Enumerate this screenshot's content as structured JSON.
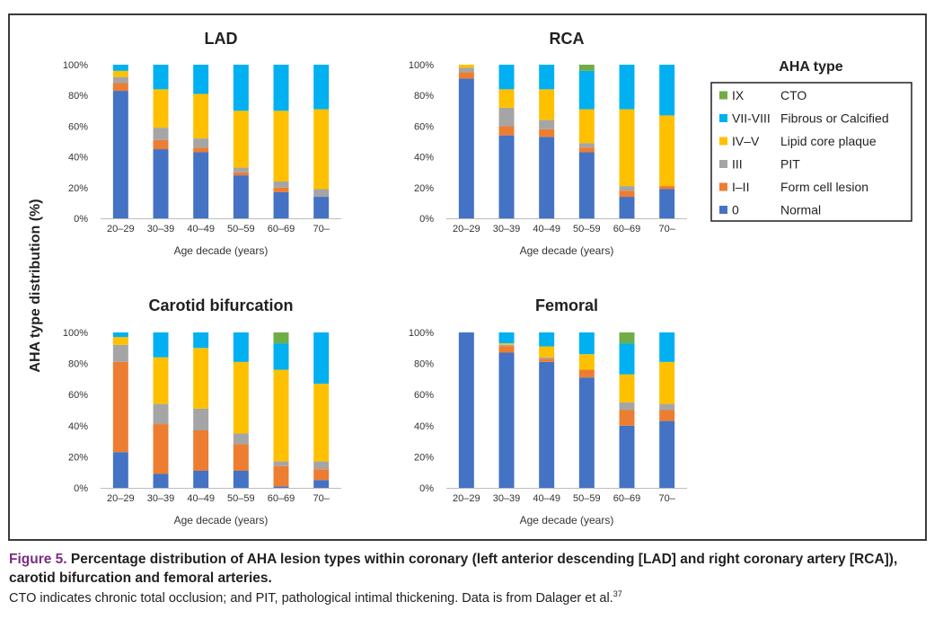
{
  "figure": {
    "label": "Figure 5.",
    "title": "Percentage distribution of AHA lesion types within coronary (left anterior descending [LAD] and right coronary artery [RCA]), carotid bifurcation and femoral arteries.",
    "note": "CTO indicates chronic total occlusion; and PIT, pathological intimal thickening. Data is from Dalager et al.",
    "note_ref": "37",
    "y_axis_label": "AHA type distribution (%)"
  },
  "legend": {
    "title": "AHA type",
    "items": [
      {
        "key": "IX",
        "code": "IX",
        "label": "CTO",
        "color": "#70ad47"
      },
      {
        "key": "VII-VIII",
        "code": "VII-VIII",
        "label": "Fibrous or Calcified",
        "color": "#00b0f0"
      },
      {
        "key": "IV-V",
        "code": "IV–V",
        "label": "Lipid core plaque",
        "color": "#ffc000"
      },
      {
        "key": "III",
        "code": "III",
        "label": "PIT",
        "color": "#a5a5a5"
      },
      {
        "key": "I-II",
        "code": "I–II",
        "label": "Form cell lesion",
        "color": "#ed7d31"
      },
      {
        "key": "0",
        "code": "0",
        "label": "Normal",
        "color": "#4472c4"
      }
    ]
  },
  "chart_data": [
    {
      "type": "bar",
      "stacked": true,
      "title": "LAD",
      "xlabel": "Age decade (years)",
      "ylabel": "AHA type distribution (%)",
      "ylim": [
        0,
        100
      ],
      "yticks": [
        "0%",
        "20%",
        "40%",
        "60%",
        "80%",
        "100%"
      ],
      "categories": [
        "20–29",
        "30–39",
        "40–49",
        "50–59",
        "60–69",
        "70–"
      ],
      "series": [
        {
          "name": "0",
          "values": [
            83,
            45,
            43,
            28,
            17,
            14
          ]
        },
        {
          "name": "I-II",
          "values": [
            5,
            6,
            3,
            2,
            3,
            0
          ]
        },
        {
          "name": "III",
          "values": [
            4,
            8,
            6,
            3,
            4,
            5
          ]
        },
        {
          "name": "IV-V",
          "values": [
            4,
            25,
            29,
            37,
            46,
            52
          ]
        },
        {
          "name": "VII-VIII",
          "values": [
            4,
            16,
            19,
            30,
            30,
            29
          ]
        },
        {
          "name": "IX",
          "values": [
            0,
            0,
            0,
            0,
            0,
            0
          ]
        }
      ]
    },
    {
      "type": "bar",
      "stacked": true,
      "title": "RCA",
      "xlabel": "Age decade (years)",
      "ylabel": "AHA type distribution (%)",
      "ylim": [
        0,
        100
      ],
      "yticks": [
        "0%",
        "20%",
        "40%",
        "60%",
        "80%",
        "100%"
      ],
      "categories": [
        "20–29",
        "30–39",
        "40–49",
        "50–59",
        "60–69",
        "70–"
      ],
      "series": [
        {
          "name": "0",
          "values": [
            91,
            54,
            53,
            43,
            14,
            19
          ]
        },
        {
          "name": "I-II",
          "values": [
            4,
            6,
            5,
            3,
            4,
            2
          ]
        },
        {
          "name": "III",
          "values": [
            3,
            12,
            6,
            3,
            3,
            0
          ]
        },
        {
          "name": "IV-V",
          "values": [
            2,
            12,
            20,
            22,
            50,
            46
          ]
        },
        {
          "name": "VII-VIII",
          "values": [
            0,
            16,
            16,
            25,
            29,
            33
          ]
        },
        {
          "name": "IX",
          "values": [
            0,
            0,
            0,
            4,
            0,
            0
          ]
        }
      ]
    },
    {
      "type": "bar",
      "stacked": true,
      "title": "Carotid bifurcation",
      "xlabel": "Age decade (years)",
      "ylabel": "AHA type distribution (%)",
      "ylim": [
        0,
        100
      ],
      "yticks": [
        "0%",
        "20%",
        "40%",
        "60%",
        "80%",
        "100%"
      ],
      "categories": [
        "20–29",
        "30–39",
        "40–49",
        "50–59",
        "60–69",
        "70–"
      ],
      "series": [
        {
          "name": "0",
          "values": [
            23,
            9,
            11,
            11,
            1,
            5
          ]
        },
        {
          "name": "I-II",
          "values": [
            58,
            32,
            26,
            17,
            13,
            7
          ]
        },
        {
          "name": "III",
          "values": [
            11,
            13,
            14,
            7,
            3,
            5
          ]
        },
        {
          "name": "IV-V",
          "values": [
            5,
            30,
            39,
            46,
            59,
            50
          ]
        },
        {
          "name": "VII-VIII",
          "values": [
            3,
            16,
            10,
            19,
            17,
            33
          ]
        },
        {
          "name": "IX",
          "values": [
            0,
            0,
            0,
            0,
            7,
            0
          ]
        }
      ]
    },
    {
      "type": "bar",
      "stacked": true,
      "title": "Femoral",
      "xlabel": "Age decade (years)",
      "ylabel": "AHA type distribution (%)",
      "ylim": [
        0,
        100
      ],
      "yticks": [
        "0%",
        "20%",
        "40%",
        "60%",
        "80%",
        "100%"
      ],
      "categories": [
        "20–29",
        "30–39",
        "40–49",
        "50–59",
        "60–69",
        "70–"
      ],
      "series": [
        {
          "name": "0",
          "values": [
            100,
            87,
            81,
            71,
            40,
            43
          ]
        },
        {
          "name": "I-II",
          "values": [
            0,
            4,
            2,
            5,
            10,
            7
          ]
        },
        {
          "name": "III",
          "values": [
            0,
            1,
            1,
            0,
            5,
            4
          ]
        },
        {
          "name": "IV-V",
          "values": [
            0,
            1,
            7,
            10,
            18,
            27
          ]
        },
        {
          "name": "VII-VIII",
          "values": [
            0,
            7,
            9,
            14,
            20,
            19
          ]
        },
        {
          "name": "IX",
          "values": [
            0,
            0,
            0,
            0,
            7,
            0
          ]
        }
      ]
    }
  ]
}
